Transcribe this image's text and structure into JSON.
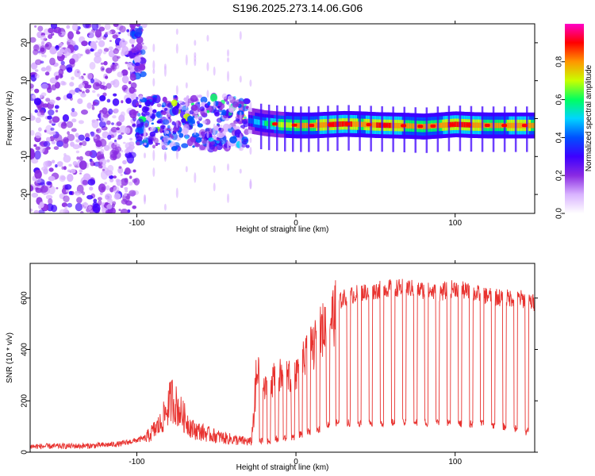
{
  "title": "S196.2025.273.14.06.G06",
  "colors": {
    "snr_line": "#e8322f",
    "axis": "#000000",
    "background": "#ffffff",
    "colormap": [
      "#ffffff",
      "#d9b3ff",
      "#8a2be2",
      "#3d00ff",
      "#0050ff",
      "#00d4ff",
      "#00ff60",
      "#c8ff00",
      "#ff9600",
      "#ff0000",
      "#ff00c8"
    ]
  },
  "chart_data": [
    {
      "type": "heatmap",
      "name": "spectrogram",
      "xlabel": "Height of straight line (km)",
      "ylabel": "Frequency (Hz)",
      "xlim": [
        -167,
        150
      ],
      "ylim": [
        -25,
        25
      ],
      "xticks": [
        -100,
        0,
        100
      ],
      "xtick_labels": [
        "-100",
        "0",
        "100"
      ],
      "yticks": [
        -20,
        -10,
        0,
        10,
        20
      ],
      "ytick_labels": [
        "-20",
        "-10",
        "0",
        "10",
        "20"
      ],
      "grid": false,
      "colorbar": {
        "label": "Normalized spectral amplitude",
        "range": [
          0.0,
          1.0
        ],
        "ticks": [
          0.0,
          0.2,
          0.4,
          0.6,
          0.8
        ],
        "tick_labels": [
          "0.0",
          "0.2",
          "0.4",
          "0.6",
          "0.8"
        ],
        "placement": "right"
      },
      "ridge": {
        "x": [
          -30,
          -20,
          -10,
          0,
          10,
          20,
          30,
          40,
          50,
          60,
          70,
          80,
          90,
          100,
          110,
          120,
          130,
          140,
          150
        ],
        "frequency": [
          -0.5,
          -1.2,
          -1.6,
          -1.8,
          -1.8,
          -1.6,
          -1.4,
          -1.5,
          -1.7,
          -1.8,
          -1.9,
          -2.1,
          -1.8,
          -1.5,
          -1.7,
          -1.8,
          -1.8,
          -1.8,
          -1.8
        ],
        "amplitude": [
          0.4,
          0.55,
          0.7,
          0.75,
          0.8,
          0.85,
          0.9,
          0.8,
          0.85,
          0.85,
          0.8,
          0.78,
          0.8,
          0.9,
          0.85,
          0.8,
          0.8,
          0.85,
          0.8
        ]
      },
      "scatter_regions": [
        {
          "x_range": [
            -167,
            -100
          ],
          "freq_range": [
            -25,
            25
          ],
          "amplitude": 0.2
        },
        {
          "x_range": [
            -100,
            -30
          ],
          "freq_range": [
            -8,
            6
          ],
          "amplitude": 0.3
        },
        {
          "x_range": [
            -103,
            -95
          ],
          "freq_range": [
            10,
            25
          ],
          "amplitude": 0.3
        }
      ]
    },
    {
      "type": "line",
      "name": "snr",
      "xlabel": "Height of straight line (km)",
      "ylabel": "SNR (10 * v/v)",
      "xlim": [
        -167,
        150
      ],
      "ylim": [
        0,
        735
      ],
      "xticks": [
        -100,
        0,
        100
      ],
      "xtick_labels": [
        "-100",
        "0",
        "100"
      ],
      "yticks": [
        0,
        200,
        400,
        600
      ],
      "ytick_labels": [
        "0",
        "200",
        "400",
        "600"
      ],
      "grid": false,
      "envelope": {
        "x": [
          -167,
          -130,
          -110,
          -95,
          -85,
          -78,
          -72,
          -65,
          -55,
          -45,
          -35,
          -28,
          -24,
          -20,
          -15,
          -10,
          -5,
          0,
          5,
          10,
          15,
          20,
          25,
          30,
          40,
          50,
          60,
          70,
          80,
          90,
          100,
          110,
          120,
          130,
          140,
          150
        ],
        "snr": [
          18,
          20,
          28,
          50,
          110,
          210,
          150,
          90,
          70,
          55,
          45,
          40,
          330,
          250,
          290,
          310,
          300,
          330,
          370,
          420,
          480,
          530,
          570,
          600,
          620,
          630,
          640,
          640,
          630,
          620,
          640,
          620,
          610,
          600,
          600,
          580
        ]
      },
      "dropouts": {
        "x": [
          -22,
          -17,
          -12,
          -7,
          -2,
          3,
          8,
          14,
          20,
          26,
          33,
          40,
          47,
          54,
          61,
          68,
          75,
          82,
          89,
          96,
          103,
          110,
          117,
          124,
          131,
          138,
          145
        ],
        "snr": [
          40,
          45,
          50,
          55,
          60,
          70,
          80,
          90,
          110,
          115,
          115,
          115,
          115,
          115,
          115,
          115,
          115,
          115,
          115,
          110,
          110,
          110,
          110,
          105,
          100,
          90,
          80
        ]
      }
    }
  ]
}
